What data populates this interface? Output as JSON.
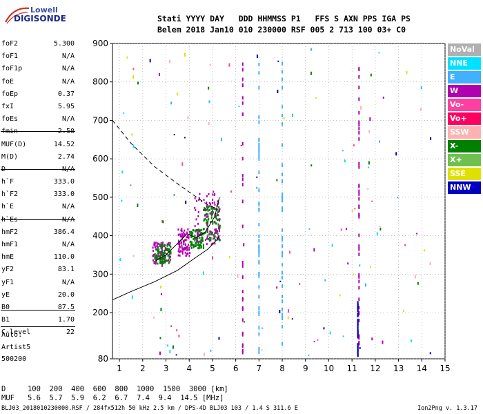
{
  "logo": {
    "line1": "Lowell",
    "line2": "DIGISONDE"
  },
  "header": {
    "row1": "Stati YYYY DAY   DDD HHMMSS P1   FFS S AXN PPS IGA PS",
    "row2": "Belem 2018 Jan10 010 230000 RSF 005 2 713 100 03+ C0"
  },
  "params": [
    {
      "name": "foF2",
      "value": "5.300"
    },
    {
      "name": "foF1",
      "value": "N/A"
    },
    {
      "name": "foF1p",
      "value": "N/A"
    },
    {
      "name": "foE",
      "value": "N/A"
    },
    {
      "name": "foEp",
      "value": "0.37"
    },
    {
      "name": "fxI",
      "value": "5.95"
    },
    {
      "name": "foEs",
      "value": "N/A"
    },
    {
      "name": "fmin",
      "value": "2.50"
    },
    {
      "name": "MUF(D)",
      "value": "14.52"
    },
    {
      "name": "M(D)",
      "value": "2.74"
    },
    {
      "name": "D",
      "value": "N/A"
    },
    {
      "name": "h`F",
      "value": "333.0"
    },
    {
      "name": "h`F2",
      "value": "333.0"
    },
    {
      "name": "h`E",
      "value": "N/A"
    },
    {
      "name": "h`Es",
      "value": "N/A"
    },
    {
      "name": "hmF2",
      "value": "386.4"
    },
    {
      "name": "hmF1",
      "value": "N/A"
    },
    {
      "name": "hmE",
      "value": "110.0"
    },
    {
      "name": "yF2",
      "value": "83.1"
    },
    {
      "name": "yF1",
      "value": "N/A"
    },
    {
      "name": "yE",
      "value": "20.0"
    },
    {
      "name": "B0",
      "value": "87.5"
    },
    {
      "name": "B1",
      "value": "1.70"
    },
    {
      "name": "C-level",
      "value": "22"
    }
  ],
  "auto": {
    "line1": "Auto:",
    "line2": "Artist5",
    "line3": "500200"
  },
  "legend": [
    {
      "label": "NoVal",
      "color": "#b0b0b0"
    },
    {
      "label": "NNE",
      "color": "#00e0ff"
    },
    {
      "label": "E",
      "color": "#40b0ff"
    },
    {
      "label": "W",
      "color": "#b000b0"
    },
    {
      "label": "Vo-",
      "color": "#ff40a0"
    },
    {
      "label": "Vo+",
      "color": "#ff0060"
    },
    {
      "label": "SSW",
      "color": "#ffb0b0"
    },
    {
      "label": "X-",
      "color": "#008000"
    },
    {
      "label": "X+",
      "color": "#70c050"
    },
    {
      "label": "SSE",
      "color": "#e0e000"
    },
    {
      "label": "NNW",
      "color": "#0000c0"
    }
  ],
  "muf_table": {
    "d_label": "D",
    "d_values": "100  200  400  600  800  1000  1500  3000",
    "d_unit": "[km]",
    "muf_label": "MUF",
    "muf_values": "5.6  5.7  5.9  6.2  6.7  7.4  9.4  14.5",
    "muf_unit": "[MHz]"
  },
  "footer": {
    "left": "BLJ03_2018010230000.RSF / 284fx512h 50 kHz 2.5 km / DPS-4D BLJ03 103 / 1.4 S 311.6 E",
    "right": "Ion2Png v. 1.3.17"
  },
  "chart_data": {
    "type": "scatter",
    "title": "",
    "xlabel": "",
    "ylabel": "",
    "xlim": [
      0.7,
      15
    ],
    "ylim": [
      80,
      900
    ],
    "x_ticks": [
      1,
      2,
      3,
      4,
      5,
      6,
      7,
      8,
      9,
      10,
      11,
      12,
      13,
      14,
      15
    ],
    "y_ticks": [
      80,
      200,
      300,
      400,
      500,
      600,
      700,
      800,
      900
    ],
    "grid": "dotted",
    "trace_clusters": [
      {
        "x_range": [
          2.4,
          3.2
        ],
        "h_range": [
          330,
          385
        ],
        "color": "#b000b0"
      },
      {
        "x_range": [
          2.5,
          3.2
        ],
        "h_range": [
          330,
          380
        ],
        "color": "#008000"
      },
      {
        "x_range": [
          3.5,
          4.0
        ],
        "h_range": [
          350,
          420
        ],
        "color": "#b000b0"
      },
      {
        "x_range": [
          4.0,
          4.6
        ],
        "h_range": [
          370,
          420
        ],
        "color": "#008000"
      },
      {
        "x_range": [
          4.6,
          5.3
        ],
        "h_range": [
          390,
          480
        ],
        "color": "#008000"
      },
      {
        "x_range": [
          4.2,
          5.3
        ],
        "h_range": [
          380,
          520
        ],
        "color": "#b000b0"
      }
    ],
    "vertical_lines": [
      {
        "x": 6.3,
        "h_range": [
          100,
          860
        ],
        "color": "#b000b0"
      },
      {
        "x": 7.0,
        "h_range": [
          100,
          860
        ],
        "color": "#40b0ff"
      },
      {
        "x": 8.0,
        "h_range": [
          100,
          860
        ],
        "color": "#40b0ff"
      },
      {
        "x": 11.3,
        "h_range": [
          90,
          860
        ],
        "color": "#b000b0"
      },
      {
        "x": 11.25,
        "h_range": [
          90,
          230
        ],
        "color": "#0000c0"
      }
    ],
    "curves": [
      {
        "name": "profile",
        "style": "solid",
        "points": [
          [
            0.7,
            233
          ],
          [
            1.5,
            255
          ],
          [
            2.5,
            280
          ],
          [
            3.5,
            310
          ],
          [
            4.2,
            340
          ],
          [
            4.8,
            365
          ],
          [
            5.2,
            390
          ],
          [
            5.3,
            400
          ]
        ]
      },
      {
        "name": "ordinary",
        "style": "solid",
        "points": [
          [
            2.5,
            333
          ],
          [
            3.0,
            350
          ],
          [
            3.5,
            380
          ],
          [
            3.9,
            405
          ],
          [
            4.3,
            395
          ],
          [
            4.7,
            410
          ],
          [
            5.1,
            450
          ],
          [
            5.3,
            500
          ]
        ]
      },
      {
        "name": "mirror",
        "style": "dashed",
        "points": [
          [
            0.7,
            700
          ],
          [
            1.5,
            640
          ],
          [
            2.5,
            580
          ],
          [
            3.5,
            535
          ],
          [
            4.2,
            505
          ],
          [
            4.8,
            480
          ],
          [
            5.2,
            470
          ]
        ]
      }
    ]
  }
}
